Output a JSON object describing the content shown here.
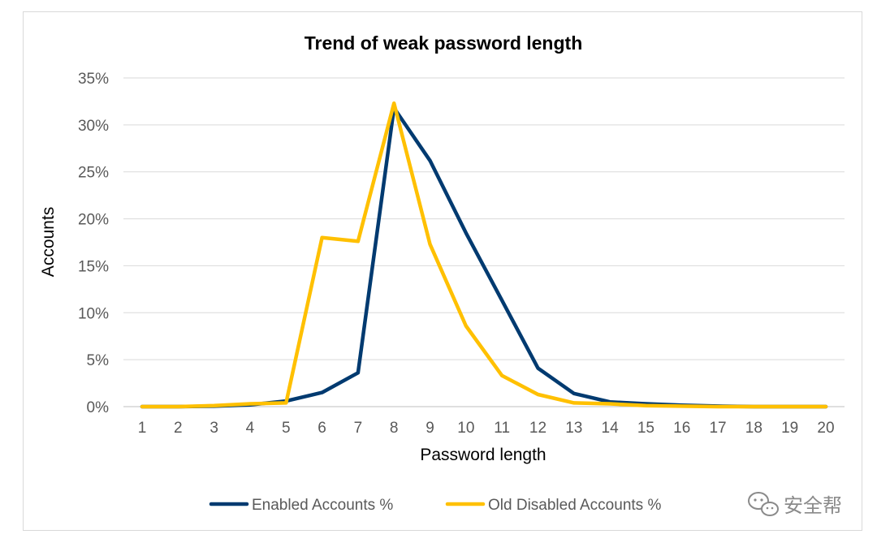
{
  "chart_data": {
    "type": "line",
    "title": "Trend of weak password length",
    "xlabel": "Password length",
    "ylabel": "Accounts",
    "categories": [
      "1",
      "2",
      "3",
      "4",
      "5",
      "6",
      "7",
      "8",
      "9",
      "10",
      "11",
      "12",
      "13",
      "14",
      "15",
      "16",
      "17",
      "18",
      "19",
      "20"
    ],
    "ylim": [
      0,
      35
    ],
    "yticks": [
      0,
      5,
      10,
      15,
      20,
      25,
      30,
      35
    ],
    "ytick_labels": [
      "0%",
      "5%",
      "10%",
      "15%",
      "20%",
      "25%",
      "30%",
      "35%"
    ],
    "grid": true,
    "legend_position": "bottom",
    "series": [
      {
        "name": "Enabled Accounts %",
        "color": "#003a70",
        "values": [
          0,
          0,
          0.05,
          0.2,
          0.6,
          1.5,
          3.6,
          31.8,
          26.2,
          18.5,
          11.3,
          4.1,
          1.4,
          0.5,
          0.3,
          0.15,
          0.05,
          0,
          0,
          0
        ]
      },
      {
        "name": "Old Disabled Accounts %",
        "color": "#ffc000",
        "values": [
          0,
          0,
          0.1,
          0.3,
          0.4,
          18.0,
          17.6,
          32.3,
          17.3,
          8.6,
          3.3,
          1.3,
          0.4,
          0.3,
          0.1,
          0.05,
          0,
          0,
          0,
          0
        ]
      }
    ]
  },
  "watermark": {
    "icon": "wechat-icon",
    "text": "安全帮"
  }
}
